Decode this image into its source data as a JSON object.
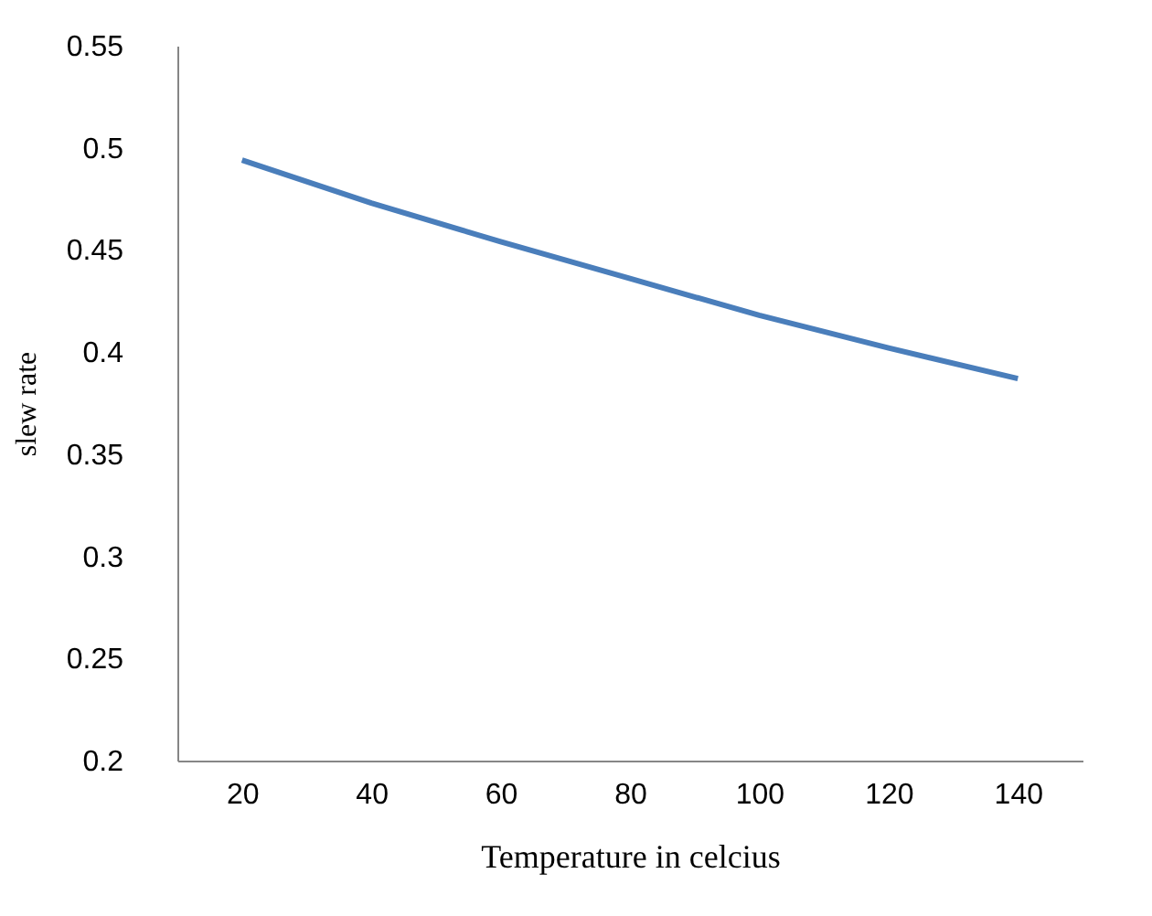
{
  "chart_data": {
    "type": "line",
    "xlabel": "Temperature  in celcius",
    "ylabel": "slew rate",
    "categories": [
      "20",
      "40",
      "60",
      "80",
      "100",
      "120",
      "140"
    ],
    "series": [
      {
        "color": "#4a7ebb",
        "values": [
          0.494,
          0.473,
          0.454,
          0.436,
          0.418,
          0.402,
          0.387
        ]
      }
    ],
    "ylim": [
      0.2,
      0.55
    ],
    "yticks": [
      0.2,
      0.25,
      0.3,
      0.35,
      0.4,
      0.45,
      0.5,
      0.55
    ],
    "grid": false,
    "marker": "none",
    "line_style": "solid"
  }
}
